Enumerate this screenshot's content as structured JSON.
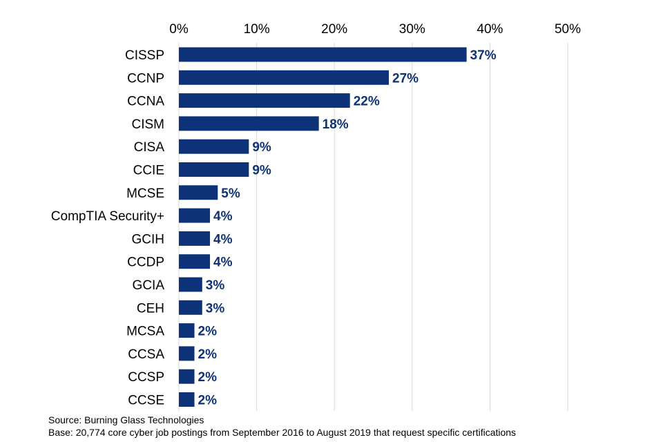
{
  "chart_data": {
    "type": "bar",
    "orientation": "horizontal",
    "title": "",
    "xlabel": "",
    "ylabel": "",
    "xlim": [
      0,
      50
    ],
    "x_ticks": [
      0,
      10,
      20,
      30,
      40,
      50
    ],
    "x_tick_labels": [
      "0%",
      "10%",
      "20%",
      "30%",
      "40%",
      "50%"
    ],
    "axis_position": "top",
    "grid": true,
    "categories": [
      "CISSP",
      "CCNP",
      "CCNA",
      "CISM",
      "CISA",
      "CCIE",
      "MCSE",
      "CompTIA Security+",
      "GCIH",
      "CCDP",
      "GCIA",
      "CEH",
      "MCSA",
      "CCSA",
      "CCSP",
      "CCSE"
    ],
    "values": [
      37,
      27,
      22,
      18,
      9,
      9,
      5,
      4,
      4,
      4,
      3,
      3,
      2,
      2,
      2,
      2
    ],
    "value_labels": [
      "37%",
      "27%",
      "22%",
      "18%",
      "9%",
      "9%",
      "5%",
      "4%",
      "4%",
      "4%",
      "3%",
      "3%",
      "2%",
      "2%",
      "2%",
      "2%"
    ],
    "bar_color": "#0e3277",
    "label_color": "#0e3277",
    "grid_color": "#d9d9d9"
  },
  "notes": {
    "source": "Source: Burning Glass Technologies",
    "base": "Base: 20,774 core cyber job postings from September 2016 to August 2019 that request specific certifications"
  }
}
